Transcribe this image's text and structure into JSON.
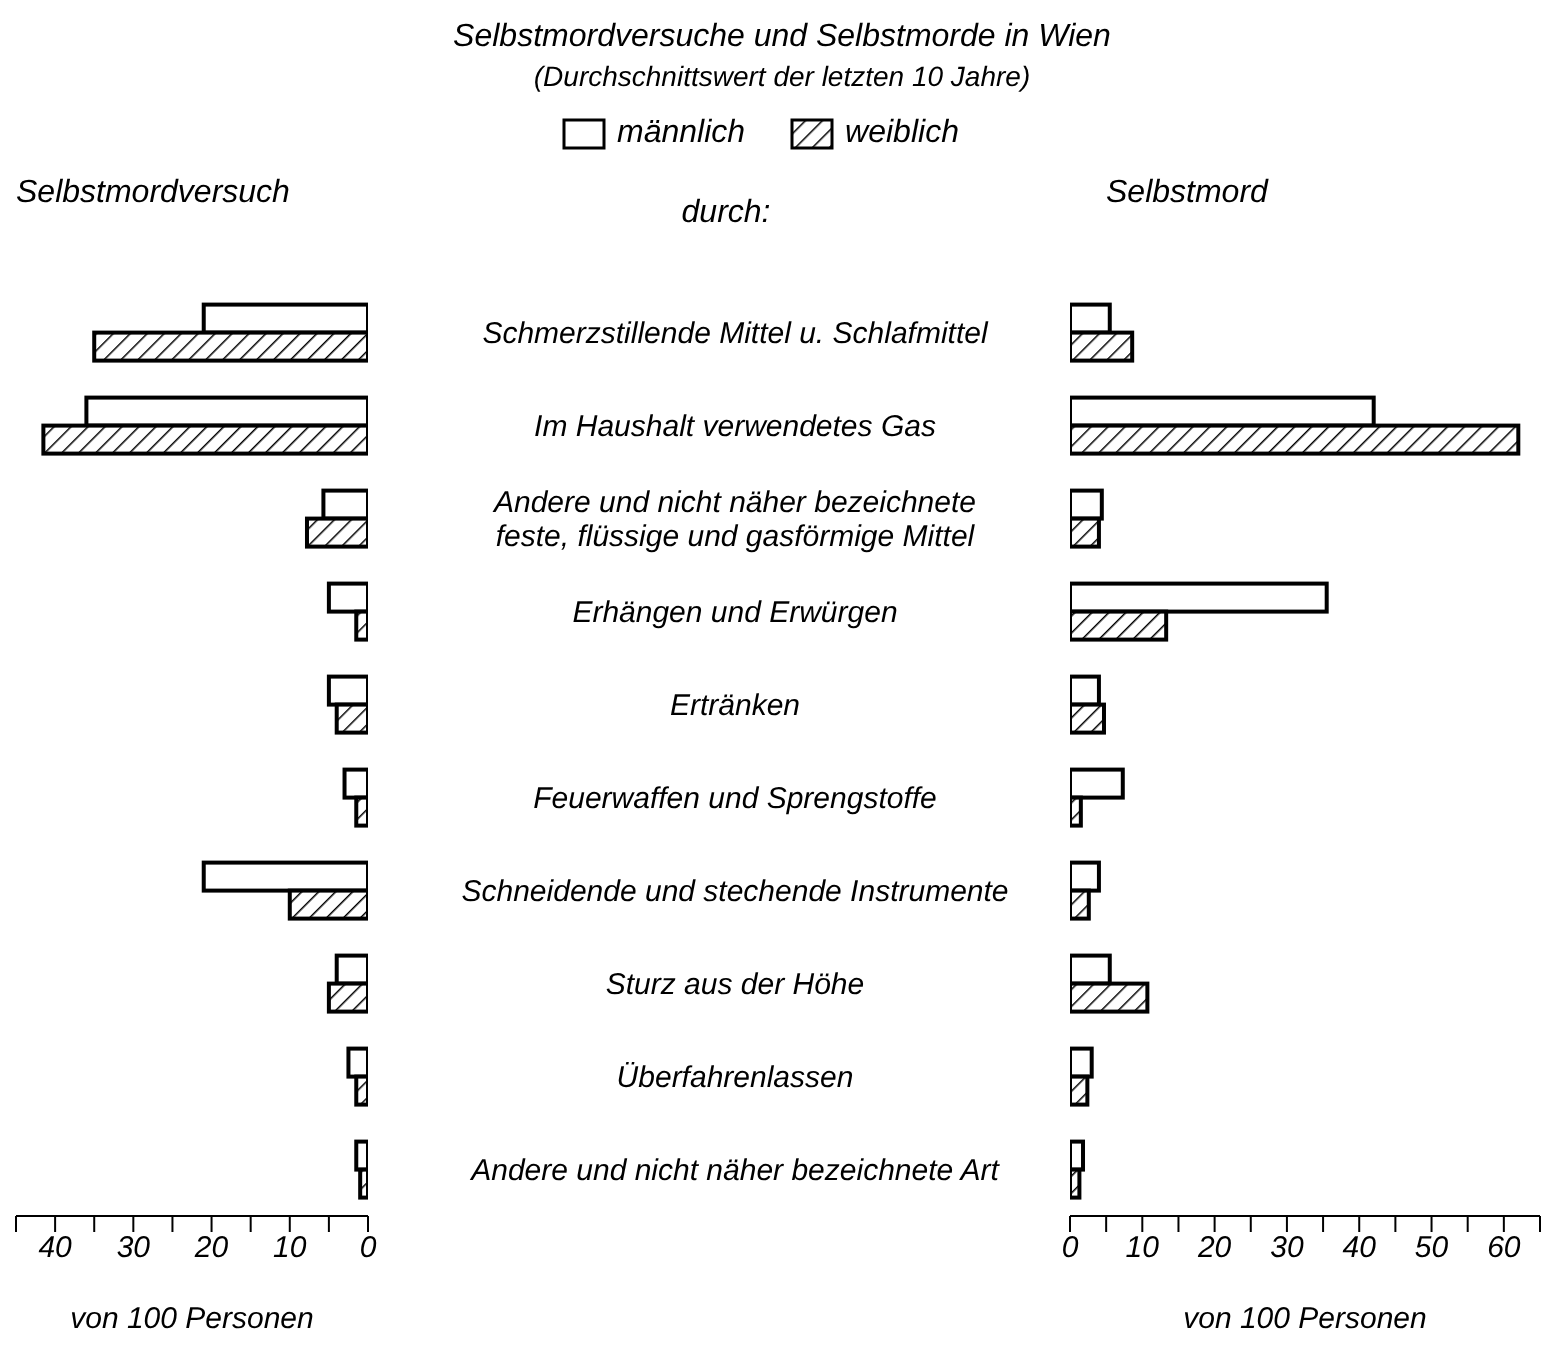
{
  "chart_data": [
    {
      "type": "bar",
      "orientation": "horizontal",
      "title": "Selbstmordversuche und Selbstmorde in Wien",
      "subtitle": "(Durchschnittswert der letzten 10 Jahre)",
      "annotations": [
        "Selbstmordversuch"
      ],
      "ylabel": "durch:",
      "xlabel": "von 100 Personen",
      "legend": "top",
      "categories": [
        "Schmerzstillende Mittel u. Schlafmittel",
        "Im Haushalt verwendetes Gas",
        "Andere und nicht näher bezeichnete feste, flüssige und gasförmige Mittel",
        "Erhängen und Erwürgen",
        "Ertränken",
        "Feuerwaffen und Sprengstoffe",
        "Schneidende und stechende Instrumente",
        "Sturz aus der Höhe",
        "Überfahrenlassen",
        "Andere und nicht näher bezeichnete Art"
      ],
      "series": [
        {
          "name": "männlich",
          "color": "#ffffff",
          "values": [
            21,
            36,
            5.7,
            5,
            5,
            3,
            21,
            4,
            2.5,
            1.5
          ]
        },
        {
          "name": "weiblich",
          "color": "#000000",
          "values": [
            35,
            41.5,
            7.8,
            1.5,
            4,
            1.5,
            10,
            5,
            1.5,
            1
          ]
        }
      ],
      "xlim": [
        45,
        0
      ],
      "xticks": [
        {
          "value": 45,
          "label": null
        },
        40,
        {
          "value": 35,
          "label": null
        },
        30,
        {
          "value": 25,
          "label": null
        },
        20,
        {
          "value": 15,
          "label": null
        },
        10,
        {
          "value": 5,
          "label": null
        },
        0
      ]
    },
    {
      "type": "bar",
      "orientation": "horizontal",
      "title": "Selbstmord",
      "xlabel": "von 100 Personen",
      "tick_labels": "x",
      "categories": [
        null,
        null,
        null,
        null,
        null,
        null,
        null,
        null,
        null,
        null
      ],
      "series": [
        {
          "color": "#ffffff",
          "values": [
            5.5,
            42,
            4.4,
            35.5,
            4,
            7.3,
            4,
            5.5,
            3,
            1.8
          ]
        },
        {
          "color": "#000000",
          "values": [
            8.6,
            62,
            4,
            13.3,
            4.7,
            1.5,
            2.6,
            10.7,
            2.4,
            1.3
          ]
        }
      ],
      "xlim": [
        0,
        65
      ],
      "xticks": [
        0,
        {
          "value": 5,
          "label": null
        },
        10,
        {
          "value": 15,
          "label": null
        },
        20,
        {
          "value": 25,
          "label": null
        },
        30,
        {
          "value": 35,
          "label": null
        },
        40,
        {
          "value": 45,
          "label": null
        },
        50,
        {
          "value": 55,
          "label": null
        },
        60,
        {
          "value": 65,
          "label": null
        }
      ]
    }
  ]
}
